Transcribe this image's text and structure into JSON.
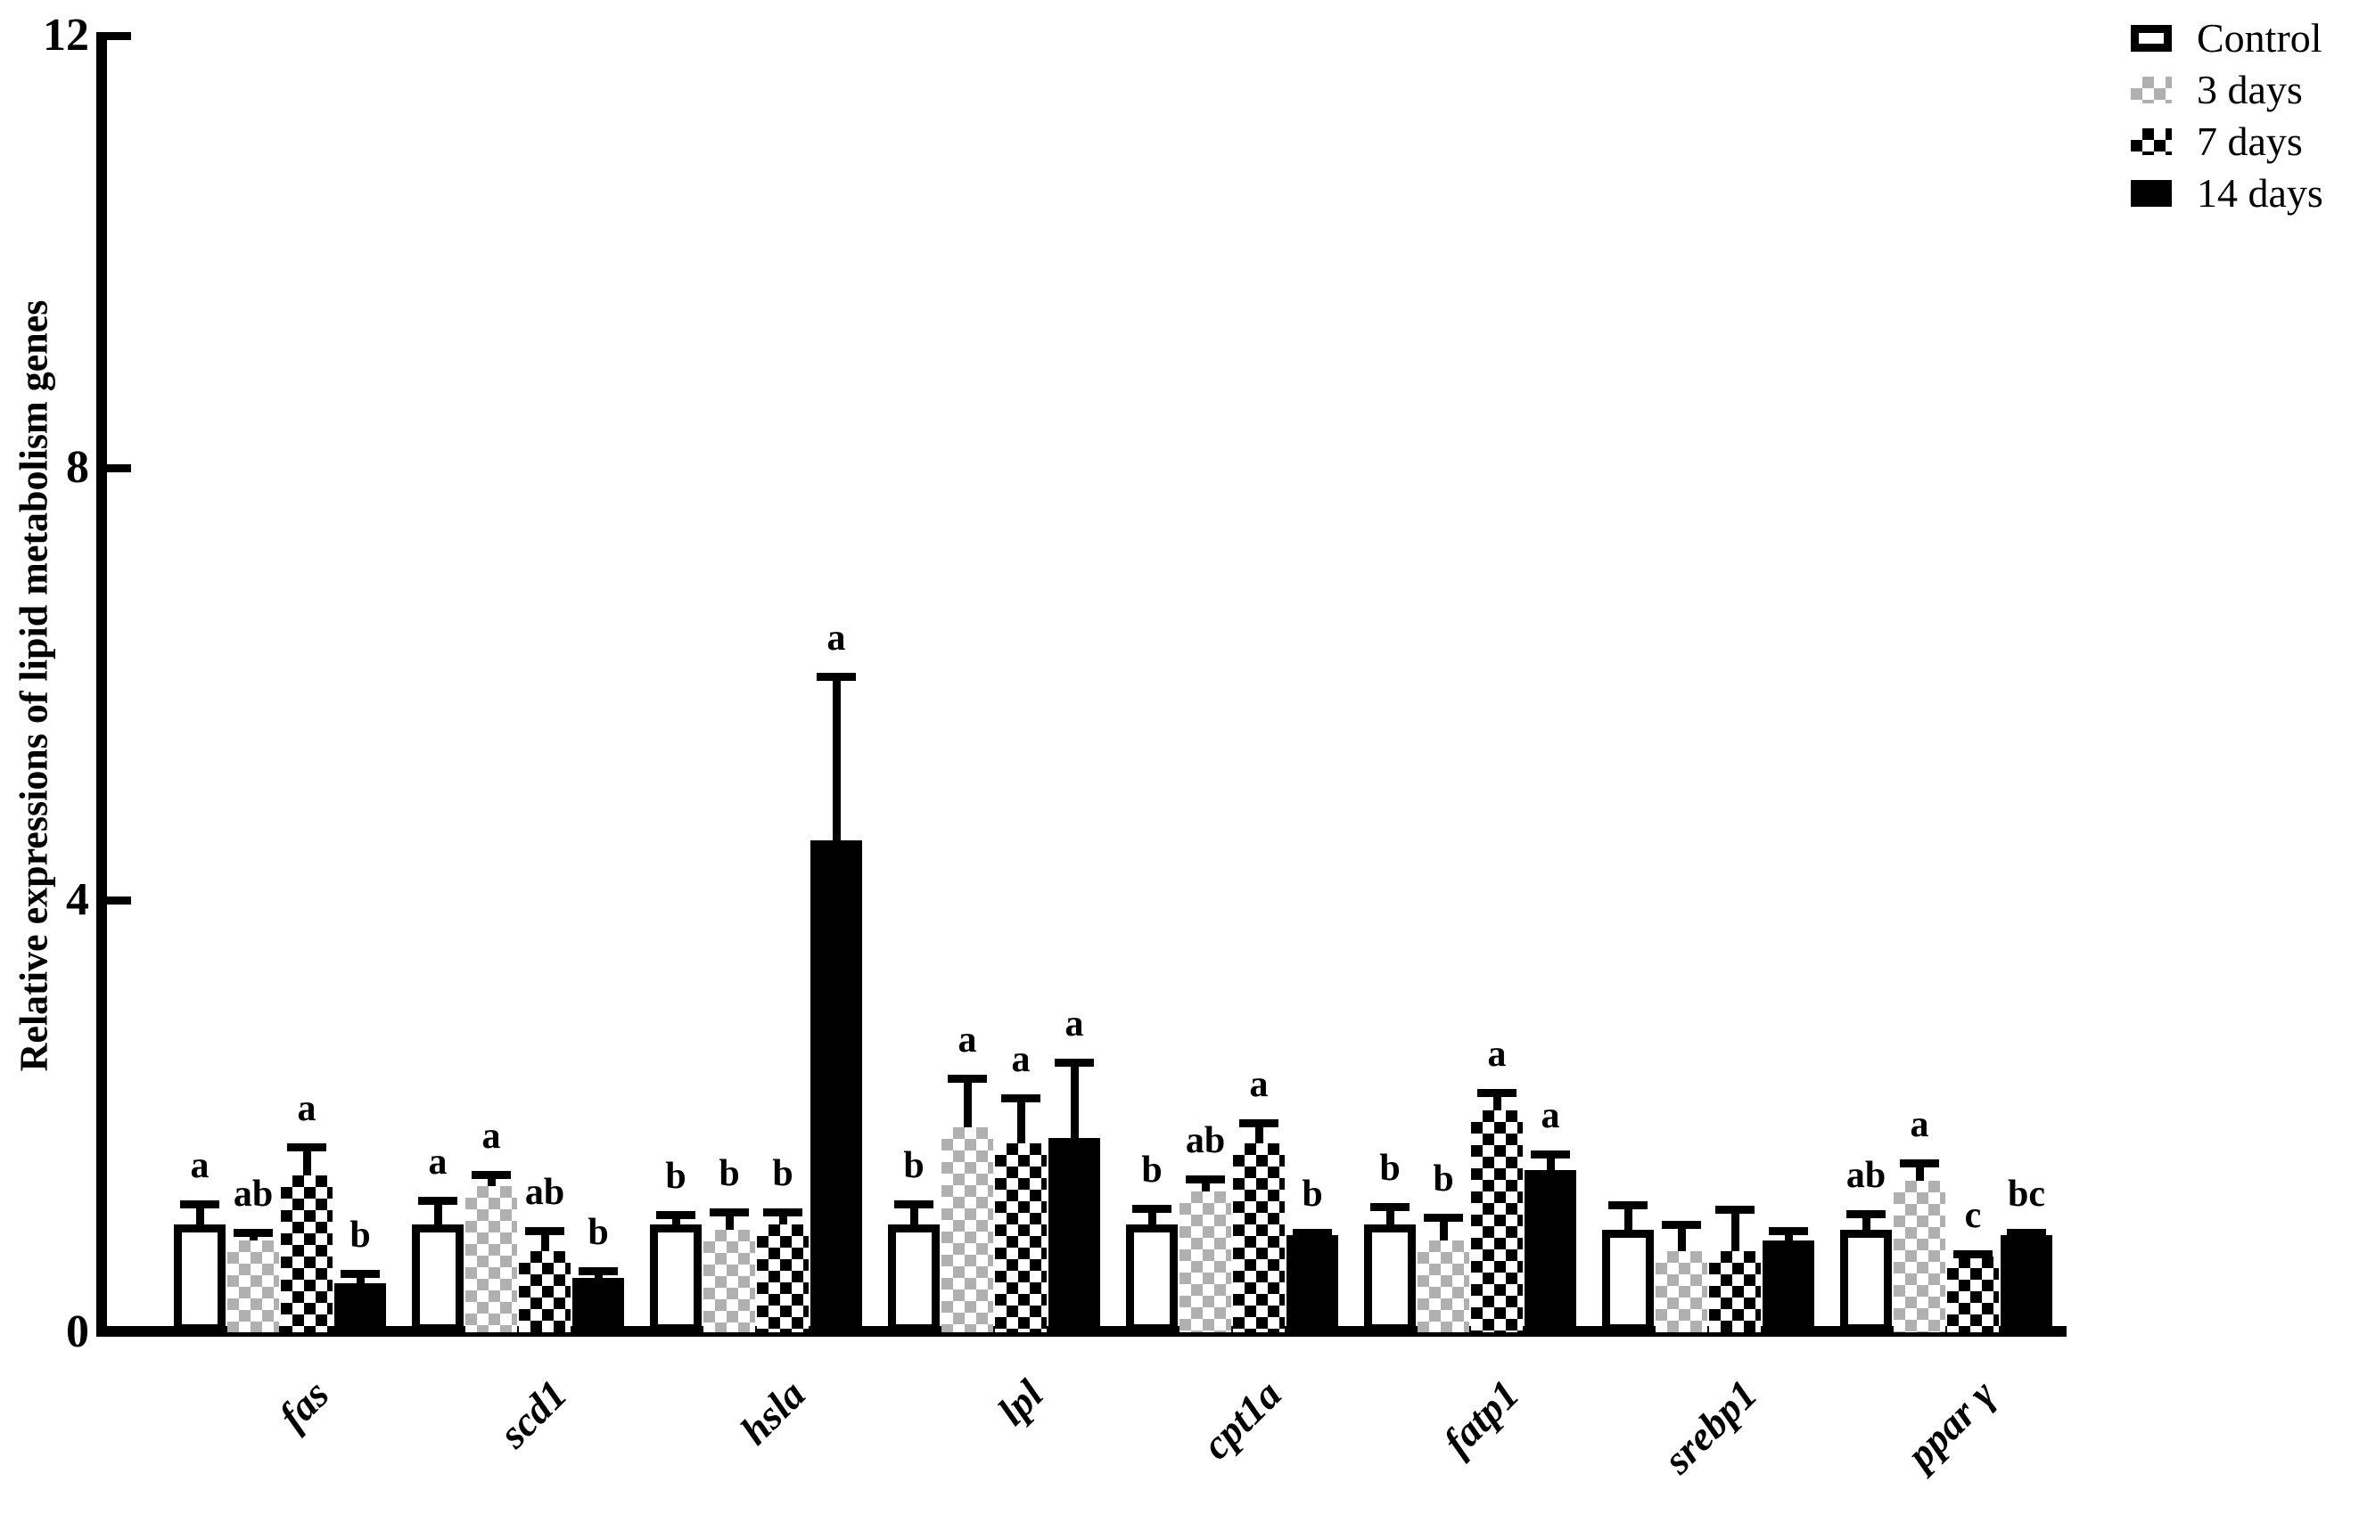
{
  "chart_data": {
    "type": "bar",
    "title": "",
    "ylabel": "Relative expressions of lipid metabolism genes",
    "xlabel": "",
    "ylim": [
      0,
      12
    ],
    "yticks": [
      0,
      4,
      8,
      12
    ],
    "grid": false,
    "legend_position": "top-right",
    "error_bars": "upper",
    "categories": [
      "fas",
      "scd1",
      "hsla",
      "lpl",
      "cpt1a",
      "fatp1",
      "srebp1",
      "ppar γ"
    ],
    "series": [
      {
        "name": "Control",
        "pattern": "white-outlined",
        "values": [
          1.0,
          1.0,
          1.0,
          1.0,
          1.0,
          1.0,
          0.95,
          0.95
        ],
        "error_up": [
          0.22,
          0.25,
          0.12,
          0.22,
          0.18,
          0.2,
          0.26,
          0.18
        ],
        "letters": [
          "a",
          "a",
          "b",
          "b",
          "b",
          "b",
          "",
          "ab"
        ]
      },
      {
        "name": "3 days",
        "pattern": "gray-checkerboard",
        "values": [
          0.85,
          1.35,
          0.95,
          1.9,
          1.3,
          0.85,
          0.75,
          1.4
        ],
        "error_up": [
          0.11,
          0.14,
          0.2,
          0.48,
          0.15,
          0.25,
          0.28,
          0.2
        ],
        "letters": [
          "ab",
          "a",
          "b",
          "a",
          "ab",
          "b",
          "",
          "a"
        ]
      },
      {
        "name": "7 days",
        "pattern": "black-checkerboard",
        "values": [
          1.45,
          0.75,
          1.0,
          1.75,
          1.75,
          2.05,
          0.75,
          0.7
        ],
        "error_up": [
          0.3,
          0.22,
          0.15,
          0.45,
          0.22,
          0.2,
          0.42,
          0.06
        ],
        "letters": [
          "a",
          "ab",
          "b",
          "a",
          "a",
          "a",
          "",
          "c"
        ]
      },
      {
        "name": "14 days",
        "pattern": "solid-black",
        "values": [
          0.45,
          0.5,
          4.55,
          1.8,
          0.9,
          1.5,
          0.85,
          0.9
        ],
        "error_up": [
          0.13,
          0.1,
          1.55,
          0.73,
          0.06,
          0.18,
          0.12,
          0.06
        ],
        "letters": [
          "b",
          "b",
          "a",
          "a",
          "b",
          "a",
          "",
          "bc"
        ]
      }
    ]
  }
}
